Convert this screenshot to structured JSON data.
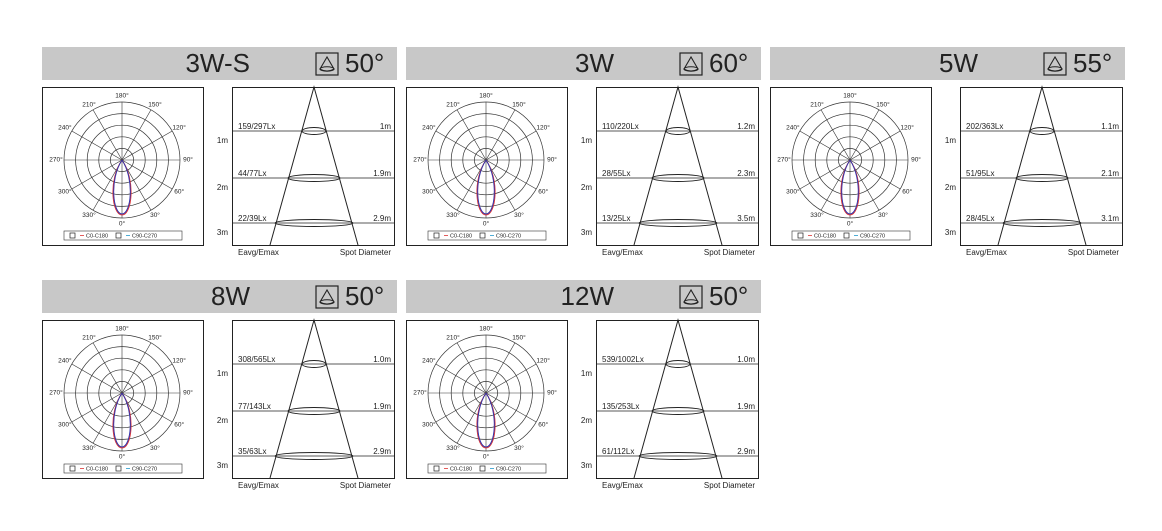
{
  "polar_labels": [
    "180°",
    "150°",
    "120°",
    "90°",
    "60°",
    "30°",
    "0°",
    "330°",
    "300°",
    "270°",
    "240°",
    "210°"
  ],
  "legend": [
    "C0-C180",
    "C90-C270"
  ],
  "distances": [
    "1m",
    "2m",
    "3m"
  ],
  "footer": {
    "left": "Eavg/Emax",
    "right": "Spot Diameter"
  },
  "panels": [
    {
      "title": "3W-S",
      "beam_angle": "50°",
      "rows": [
        {
          "lux": "159/297Lx",
          "diameter": "1m"
        },
        {
          "lux": "44/77Lx",
          "diameter": "1.9m"
        },
        {
          "lux": "22/39Lx",
          "diameter": "2.9m"
        }
      ]
    },
    {
      "title": "3W",
      "beam_angle": "60°",
      "rows": [
        {
          "lux": "110/220Lx",
          "diameter": "1.2m"
        },
        {
          "lux": "28/55Lx",
          "diameter": "2.3m"
        },
        {
          "lux": "13/25Lx",
          "diameter": "3.5m"
        }
      ]
    },
    {
      "title": "5W",
      "beam_angle": "55°",
      "rows": [
        {
          "lux": "202/363Lx",
          "diameter": "1.1m"
        },
        {
          "lux": "51/95Lx",
          "diameter": "2.1m"
        },
        {
          "lux": "28/45Lx",
          "diameter": "3.1m"
        }
      ]
    },
    {
      "title": "8W",
      "beam_angle": "50°",
      "rows": [
        {
          "lux": "308/565Lx",
          "diameter": "1.0m"
        },
        {
          "lux": "77/143Lx",
          "diameter": "1.9m"
        },
        {
          "lux": "35/63Lx",
          "diameter": "2.9m"
        }
      ]
    },
    {
      "title": "12W",
      "beam_angle": "50°",
      "rows": [
        {
          "lux": "539/1002Lx",
          "diameter": "1.0m"
        },
        {
          "lux": "135/253Lx",
          "diameter": "1.9m"
        },
        {
          "lux": "61/112Lx",
          "diameter": "2.9m"
        }
      ]
    }
  ]
}
